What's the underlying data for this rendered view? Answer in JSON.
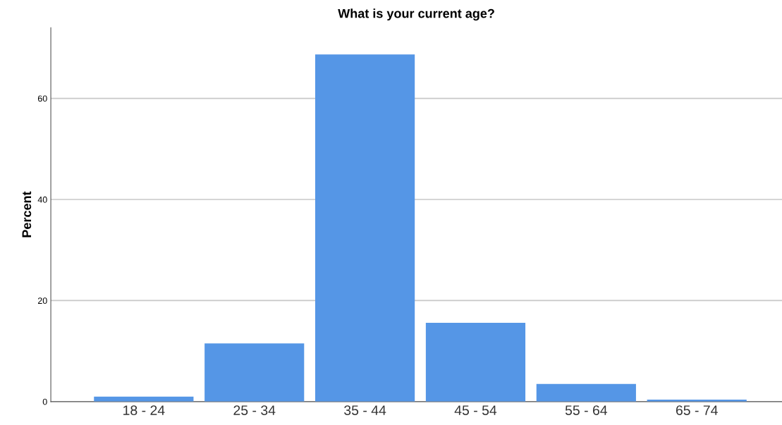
{
  "chart_data": {
    "type": "bar",
    "title": "What is your current age?",
    "ylabel": "Percent",
    "categories": [
      "18 - 24",
      "25 - 34",
      "35 - 44",
      "45 - 54",
      "55 - 64",
      "65 - 74"
    ],
    "values": [
      1.0,
      11.5,
      68.7,
      15.6,
      3.5,
      0.4
    ],
    "color": "#5596e6",
    "ylim": [
      0,
      74
    ],
    "yticks": [
      0,
      20,
      40,
      60
    ],
    "grid": "y",
    "legend": false
  }
}
